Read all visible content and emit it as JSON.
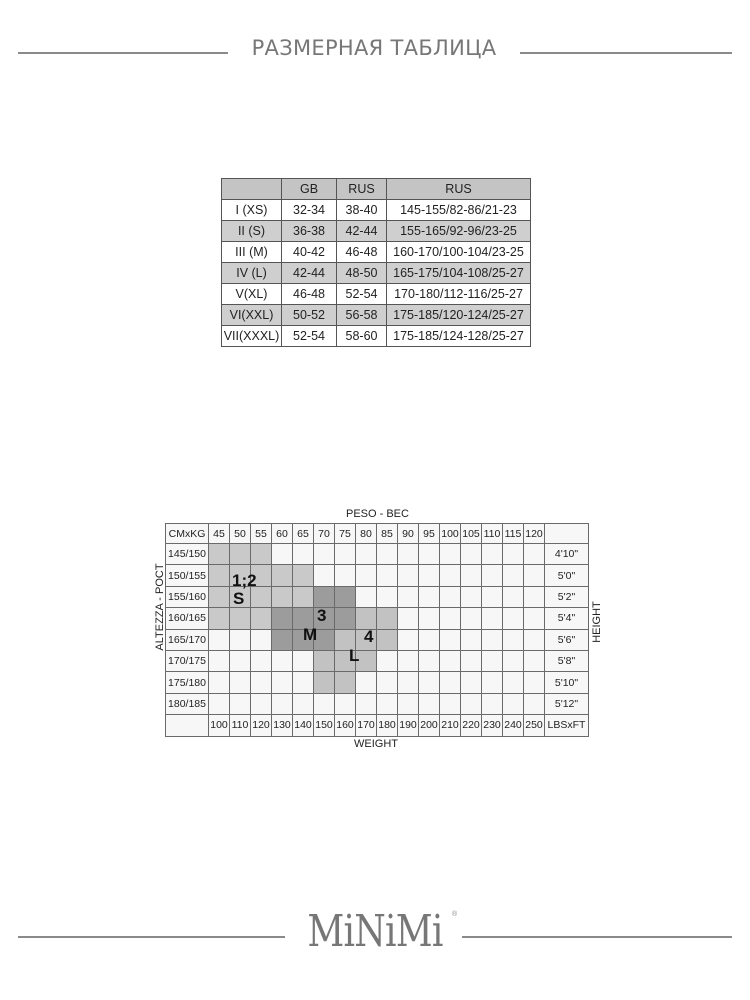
{
  "header": {
    "title": "РАЗМЕРНАЯ ТАБЛИЦА"
  },
  "size_table": {
    "columns": [
      "",
      "GB",
      "RUS",
      "RUS"
    ],
    "rows": [
      [
        "I (XS)",
        "32-34",
        "38-40",
        "145-155/82-86/21-23"
      ],
      [
        "II (S)",
        "36-38",
        "42-44",
        "155-165/92-96/23-25"
      ],
      [
        "III (M)",
        "40-42",
        "46-48",
        "160-170/100-104/23-25"
      ],
      [
        "IV (L)",
        "42-44",
        "48-50",
        "165-175/104-108/25-27"
      ],
      [
        "V(XL)",
        "46-48",
        "52-54",
        "170-180/112-116/25-27"
      ],
      [
        "VI(XXL)",
        "50-52",
        "56-58",
        "175-185/120-124/25-27"
      ],
      [
        "VII(XXXL)",
        "52-54",
        "58-60",
        "175-185/124-128/25-27"
      ]
    ]
  },
  "grid_chart": {
    "top_label": "PESO - BEC",
    "bottom_label": "WEIGHT",
    "left_label": "ALTEZZA - POCT",
    "right_label": "HEIGHT",
    "corner_top": "CMxKG",
    "corner_bottom": "LBSxFT",
    "kg": [
      "45",
      "50",
      "55",
      "60",
      "65",
      "70",
      "75",
      "80",
      "85",
      "90",
      "95",
      "100",
      "105",
      "110",
      "115",
      "120"
    ],
    "lbs": [
      "100",
      "110",
      "120",
      "130",
      "140",
      "150",
      "160",
      "170",
      "180",
      "190",
      "200",
      "210",
      "220",
      "230",
      "240",
      "250"
    ],
    "cm": [
      "145/150",
      "150/155",
      "155/160",
      "160/165",
      "165/170",
      "170/175",
      "175/180",
      "180/185"
    ],
    "ft": [
      "4'10\"",
      "5'0\"",
      "5'2\"",
      "5'4\"",
      "5'6\"",
      "5'8\"",
      "5'10\"",
      "5'12\""
    ],
    "regions": [
      {
        "size": "1;2",
        "letter": "S",
        "color": "#c9c9c9",
        "cells": {
          "145/150": [
            "45",
            "50",
            "55"
          ],
          "150/155": [
            "45",
            "50",
            "55",
            "60",
            "65"
          ],
          "155/160": [
            "45",
            "50",
            "55",
            "60",
            "65"
          ],
          "160/165": [
            "45",
            "50",
            "55"
          ]
        }
      },
      {
        "size": "3",
        "letter": "M",
        "color": "#9c9c9c",
        "cells": {
          "155/160": [
            "70",
            "75"
          ],
          "160/165": [
            "60",
            "65",
            "70",
            "75"
          ],
          "165/170": [
            "60",
            "65",
            "70"
          ]
        }
      },
      {
        "size": "4",
        "letter": "L",
        "color": "#c2c2c2",
        "cells": {
          "160/165": [
            "80",
            "85"
          ],
          "165/170": [
            "75",
            "80",
            "85"
          ],
          "170/175": [
            "70",
            "75",
            "80"
          ],
          "175/180": [
            "70",
            "75"
          ]
        }
      }
    ]
  },
  "brand": {
    "logo": "MiNiMi",
    "registered": "®"
  }
}
